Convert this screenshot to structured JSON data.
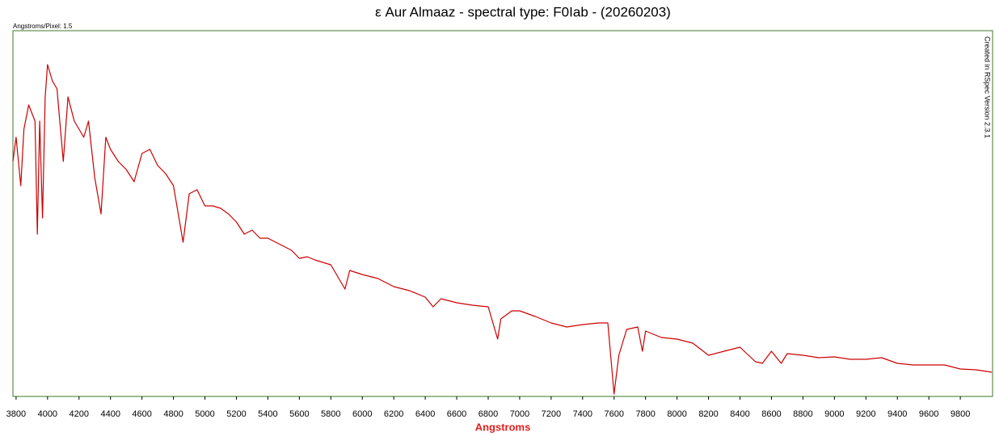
{
  "chart_data": {
    "type": "line",
    "title": "ε Aur Almaaz - spectral type: F0Iab - (20260203)",
    "annotation": "Angstroms/Pixel: 1.5",
    "credit": "Created in RSpec Version 2.3.1",
    "x_label": "Angstroms",
    "x": [
      3780,
      3800,
      3830,
      3850,
      3880,
      3900,
      3920,
      3935,
      3950,
      3968,
      3985,
      4000,
      4030,
      4060,
      4100,
      4130,
      4170,
      4200,
      4230,
      4260,
      4300,
      4340,
      4370,
      4400,
      4450,
      4500,
      4550,
      4600,
      4650,
      4700,
      4750,
      4800,
      4861,
      4900,
      4950,
      5000,
      5050,
      5100,
      5150,
      5200,
      5250,
      5300,
      5350,
      5400,
      5450,
      5500,
      5550,
      5600,
      5650,
      5700,
      5750,
      5800,
      5890,
      5920,
      6000,
      6100,
      6200,
      6300,
      6400,
      6450,
      6500,
      6600,
      6700,
      6800,
      6860,
      6880,
      6950,
      7000,
      7100,
      7200,
      7300,
      7400,
      7500,
      7560,
      7600,
      7630,
      7680,
      7750,
      7780,
      7800,
      7900,
      8000,
      8100,
      8200,
      8300,
      8400,
      8498,
      8542,
      8600,
      8662,
      8700,
      8800,
      8900,
      9000,
      9100,
      9200,
      9300,
      9400,
      9500,
      9600,
      9700,
      9800,
      9900,
      10000
    ],
    "series": [
      {
        "color": "#cc0000",
        "values": [
          291,
          321,
          261,
          331,
          361,
          351,
          341,
          201,
          341,
          221,
          371,
          411,
          391,
          381,
          291,
          371,
          341,
          331,
          321,
          341,
          271,
          226,
          321,
          306,
          291,
          281,
          266,
          301,
          306,
          286,
          276,
          261,
          191,
          251,
          256,
          236,
          236,
          233,
          226,
          216,
          201,
          206,
          196,
          196,
          191,
          186,
          181,
          171,
          173,
          169,
          166,
          163,
          133,
          156,
          151,
          146,
          136,
          131,
          123,
          111,
          121,
          116,
          113,
          111,
          71,
          96,
          106,
          106,
          99,
          91,
          86,
          89,
          91,
          91,
          3,
          51,
          83,
          86,
          56,
          81,
          73,
          71,
          66,
          51,
          56,
          61,
          43,
          41,
          56,
          41,
          53,
          51,
          48,
          49,
          46,
          46,
          48,
          41,
          39,
          39,
          39,
          34,
          33,
          30
        ]
      }
    ],
    "xlim": [
      3780,
      10005
    ],
    "ylim": [
      0,
      453
    ],
    "xticks": [
      3800,
      4000,
      4200,
      4400,
      4600,
      4800,
      5000,
      5200,
      5400,
      5600,
      5800,
      6000,
      6200,
      6400,
      6600,
      6800,
      7000,
      7200,
      7400,
      7600,
      7800,
      8000,
      8200,
      8400,
      8600,
      8800,
      9000,
      9200,
      9400,
      9600,
      9800
    ],
    "frame_color": "#3a7a2a"
  }
}
